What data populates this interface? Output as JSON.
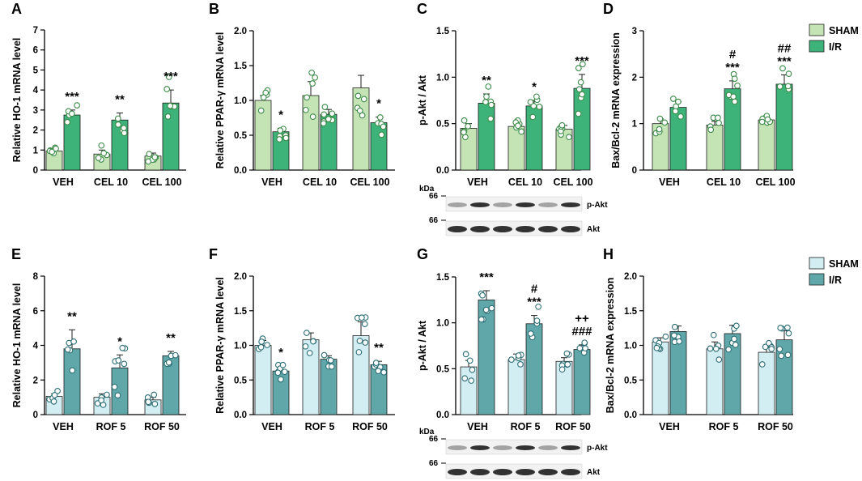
{
  "chart_data": [
    {
      "panel": "A",
      "type": "bar",
      "ylabel": "Relative HO-1 mRNA level",
      "categories": [
        "VEH",
        "CEL 10",
        "CEL 100"
      ],
      "ylim": [
        0,
        7
      ],
      "yticks": [
        "0",
        "1",
        "2",
        "3",
        "4",
        "5",
        "6",
        "7"
      ],
      "series": [
        {
          "name": "SHAM",
          "values": [
            0.95,
            0.8,
            0.7
          ],
          "errors": [
            0.1,
            0.2,
            0.15
          ]
        },
        {
          "name": "I/R",
          "values": [
            2.75,
            2.5,
            3.35
          ],
          "errors": [
            0.25,
            0.35,
            0.65
          ]
        }
      ],
      "annotations": [
        "***",
        "**",
        "***"
      ]
    },
    {
      "panel": "B",
      "type": "bar",
      "ylabel": "Relative PPAR-γ mRNA level",
      "categories": [
        "VEH",
        "CEL 10",
        "CEL 100"
      ],
      "ylim": [
        0,
        2.0
      ],
      "yticks": [
        "0.0",
        "0.5",
        "1.0",
        "1.5",
        "2.0"
      ],
      "series": [
        {
          "name": "SHAM",
          "values": [
            1.0,
            1.07,
            1.18
          ],
          "errors": [
            0.07,
            0.2,
            0.18
          ]
        },
        {
          "name": "I/R",
          "values": [
            0.55,
            0.8,
            0.68
          ],
          "errors": [
            0.05,
            0.07,
            0.08
          ]
        }
      ],
      "annotations": [
        "*",
        "",
        "*"
      ]
    },
    {
      "panel": "C",
      "type": "bar",
      "ylabel": "p-Akt / Akt",
      "categories": [
        "VEH",
        "CEL 10",
        "CEL 100"
      ],
      "ylim": [
        0,
        1.5
      ],
      "yticks": [
        "0.0",
        "0.5",
        "1.0",
        "1.5"
      ],
      "series": [
        {
          "name": "SHAM",
          "values": [
            0.45,
            0.47,
            0.44
          ],
          "errors": [
            0.05,
            0.03,
            0.04
          ]
        },
        {
          "name": "I/R",
          "values": [
            0.72,
            0.69,
            0.88
          ],
          "errors": [
            0.1,
            0.06,
            0.15
          ]
        }
      ],
      "annotations": [
        "**",
        "*",
        "***"
      ],
      "blot": {
        "unit": "kDa",
        "marker": "66",
        "bands": [
          "p-Akt",
          "Akt"
        ]
      }
    },
    {
      "panel": "D",
      "type": "bar",
      "ylabel": "Bax/Bcl-2 mRNA expression",
      "categories": [
        "VEH",
        "CEL 10",
        "CEL 100"
      ],
      "ylim": [
        0,
        3
      ],
      "yticks": [
        "0",
        "1",
        "2",
        "3"
      ],
      "series": [
        {
          "name": "SHAM",
          "values": [
            1.0,
            0.97,
            1.08
          ],
          "errors": [
            0.1,
            0.08,
            0.08
          ]
        },
        {
          "name": "I/R",
          "values": [
            1.35,
            1.75,
            1.85
          ],
          "errors": [
            0.12,
            0.17,
            0.2
          ]
        }
      ],
      "annotations": [
        "",
        "#\n***",
        "##\n***"
      ]
    },
    {
      "panel": "E",
      "type": "bar",
      "ylabel": "Relative HO-1 mRNA level",
      "categories": [
        "VEH",
        "ROF 5",
        "ROF 50"
      ],
      "ylim": [
        0,
        8
      ],
      "yticks": [
        "0",
        "2",
        "4",
        "6",
        "8"
      ],
      "series": [
        {
          "name": "SHAM",
          "values": [
            1.05,
            1.0,
            0.85
          ],
          "errors": [
            0.15,
            0.2,
            0.15
          ]
        },
        {
          "name": "I/R",
          "values": [
            3.8,
            2.7,
            3.4
          ],
          "errors": [
            1.1,
            0.75,
            0.25
          ]
        }
      ],
      "annotations": [
        "**",
        "*",
        "**"
      ]
    },
    {
      "panel": "F",
      "type": "bar",
      "ylabel": "Relative PPAR-γ mRNA level",
      "categories": [
        "VEH",
        "ROF 5",
        "ROF 50"
      ],
      "ylim": [
        0,
        2.0
      ],
      "yticks": [
        "0.0",
        "0.5",
        "1.0",
        "1.5",
        "2.0"
      ],
      "series": [
        {
          "name": "SHAM",
          "values": [
            1.0,
            1.08,
            1.14
          ],
          "errors": [
            0.07,
            0.1,
            0.2
          ]
        },
        {
          "name": "I/R",
          "values": [
            0.63,
            0.8,
            0.72
          ],
          "errors": [
            0.07,
            0.05,
            0.05
          ]
        }
      ],
      "annotations": [
        "*",
        "",
        "**"
      ]
    },
    {
      "panel": "G",
      "type": "bar",
      "ylabel": "p-Akt / Akt",
      "categories": [
        "VEH",
        "ROF 5",
        "ROF 50"
      ],
      "ylim": [
        0,
        1.5
      ],
      "yticks": [
        "0.0",
        "0.5",
        "1.0",
        "1.5"
      ],
      "series": [
        {
          "name": "SHAM",
          "values": [
            0.52,
            0.6,
            0.58
          ],
          "errors": [
            0.07,
            0.06,
            0.04
          ]
        },
        {
          "name": "I/R",
          "values": [
            1.25,
            0.99,
            0.71
          ],
          "errors": [
            0.1,
            0.09,
            0.05
          ]
        }
      ],
      "annotations": [
        "***",
        "#\n***",
        "++\n###"
      ],
      "blot": {
        "unit": "kDa",
        "marker": "66",
        "bands": [
          "p-Akt",
          "Akt"
        ]
      }
    },
    {
      "panel": "H",
      "type": "bar",
      "ylabel": "Bax/Bcl-2 mRNA expression",
      "categories": [
        "VEH",
        "ROF 5",
        "ROF 50"
      ],
      "ylim": [
        0,
        2.0
      ],
      "yticks": [
        "0.0",
        "0.5",
        "1.0",
        "1.5",
        "2.0"
      ],
      "series": [
        {
          "name": "SHAM",
          "values": [
            1.05,
            0.95,
            0.9
          ],
          "errors": [
            0.06,
            0.1,
            0.08
          ]
        },
        {
          "name": "I/R",
          "values": [
            1.2,
            1.17,
            1.08
          ],
          "errors": [
            0.08,
            0.12,
            0.13
          ]
        }
      ],
      "annotations": [
        "",
        "",
        ""
      ]
    }
  ],
  "legends": [
    {
      "items": [
        {
          "name": "SHAM",
          "color": "#c5e4b5"
        },
        {
          "name": "I/R",
          "color": "#3db37a"
        }
      ]
    },
    {
      "items": [
        {
          "name": "SHAM",
          "color": "#d3eef3"
        },
        {
          "name": "I/R",
          "color": "#5fa7a9"
        }
      ]
    }
  ],
  "colors": {
    "row1_sham": "#c5e4b5",
    "row1_ir": "#3db37a",
    "row1_dot": "#3b8a48",
    "row2_sham": "#d3eef3",
    "row2_ir": "#5fa7a9",
    "row2_dot": "#2c6e74"
  }
}
